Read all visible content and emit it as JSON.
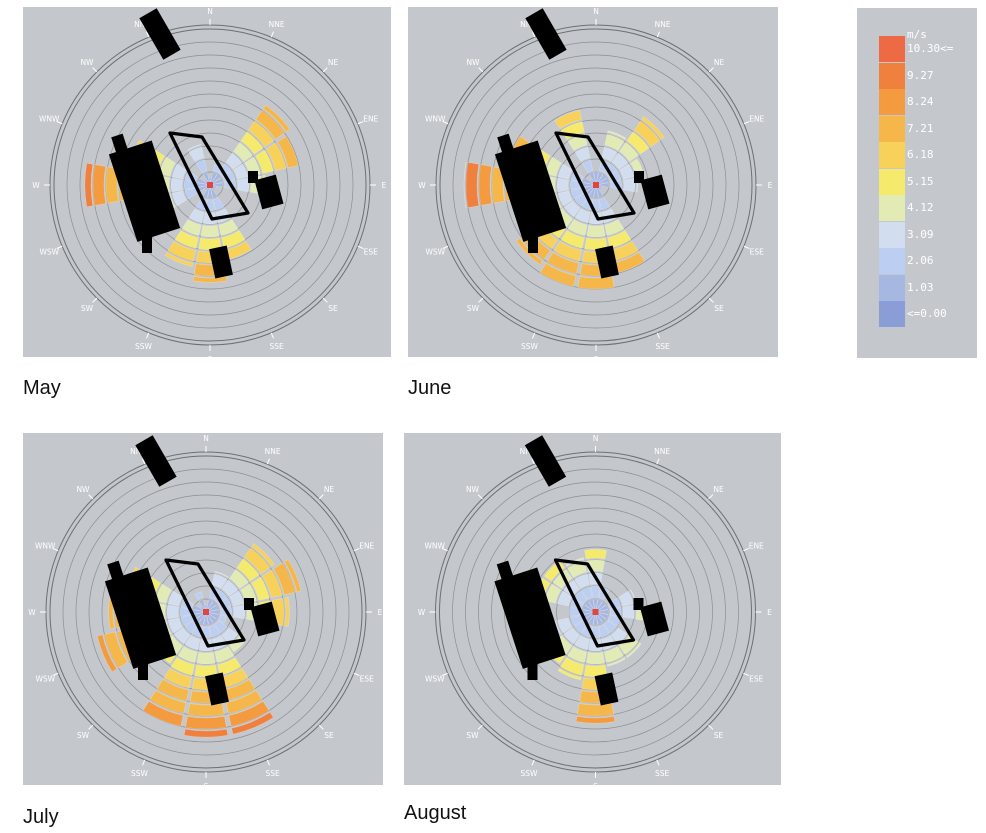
{
  "legend": {
    "unit": "m/s",
    "entries": [
      {
        "label": "10.30<=",
        "color": "#ee6a44"
      },
      {
        "label": "9.27",
        "color": "#f0803e"
      },
      {
        "label": "8.24",
        "color": "#f39b3e"
      },
      {
        "label": "7.21",
        "color": "#f5b74a"
      },
      {
        "label": "6.18",
        "color": "#f7d159"
      },
      {
        "label": "5.15",
        "color": "#f5ea6c"
      },
      {
        "label": "4.12",
        "color": "#e3ebb4"
      },
      {
        "label": "3.09",
        "color": "#d2def0"
      },
      {
        "label": "2.06",
        "color": "#bccff2"
      },
      {
        "label": "1.03",
        "color": "#a6b7e2"
      },
      {
        "label": "<=0.00",
        "color": "#8b9dd6"
      }
    ]
  },
  "directions": [
    "N",
    "NNE",
    "NE",
    "ENE",
    "E",
    "ESE",
    "SE",
    "SSE",
    "S",
    "SSW",
    "SW",
    "WSW",
    "W",
    "WNW",
    "NW",
    "NNW"
  ],
  "chart_data": [
    {
      "type": "polar-bar",
      "title": "May",
      "unit": "m/s",
      "directions": [
        "N",
        "NNE",
        "NE",
        "ENE",
        "E",
        "ESE",
        "SE",
        "SSE",
        "S",
        "SSW",
        "SW",
        "WSW",
        "W",
        "WNW",
        "NW",
        "NNW"
      ],
      "values": [
        0.5,
        1.5,
        7.0,
        6.5,
        4.0,
        0.5,
        0.5,
        5.5,
        7.0,
        6.0,
        0.5,
        5.0,
        9.0,
        6.0,
        0.5,
        3.0
      ]
    },
    {
      "type": "polar-bar",
      "title": "June",
      "unit": "m/s",
      "directions": [
        "N",
        "NNE",
        "NE",
        "ENE",
        "E",
        "ESE",
        "SE",
        "SSE",
        "S",
        "SSW",
        "SW",
        "WSW",
        "W",
        "WNW",
        "NW",
        "NNW"
      ],
      "values": [
        1.0,
        4.0,
        6.0,
        3.5,
        3.0,
        0.5,
        0.5,
        6.5,
        7.5,
        7.5,
        7.0,
        6.0,
        9.5,
        6.5,
        0.5,
        5.5
      ]
    },
    {
      "type": "polar-bar",
      "title": "July",
      "unit": "m/s",
      "directions": [
        "N",
        "NNE",
        "NE",
        "ENE",
        "E",
        "ESE",
        "SE",
        "SSE",
        "S",
        "SSW",
        "SW",
        "WSW",
        "W",
        "WNW",
        "NW",
        "NNW"
      ],
      "values": [
        0.5,
        3.0,
        6.0,
        7.0,
        6.0,
        1.5,
        3.5,
        9.0,
        9.0,
        8.5,
        4.5,
        8.0,
        7.0,
        6.0,
        0.5,
        1.5
      ]
    },
    {
      "type": "polar-bar",
      "title": "August",
      "unit": "m/s",
      "directions": [
        "N",
        "NNE",
        "NE",
        "ENE",
        "E",
        "ESE",
        "SE",
        "SSE",
        "S",
        "SSW",
        "SW",
        "WSW",
        "W",
        "WNW",
        "NW",
        "NNW"
      ],
      "values": [
        4.5,
        2.0,
        1.0,
        3.0,
        3.5,
        2.0,
        4.0,
        4.0,
        8.0,
        5.0,
        4.5,
        3.0,
        2.0,
        4.5,
        4.5,
        4.0
      ]
    }
  ]
}
